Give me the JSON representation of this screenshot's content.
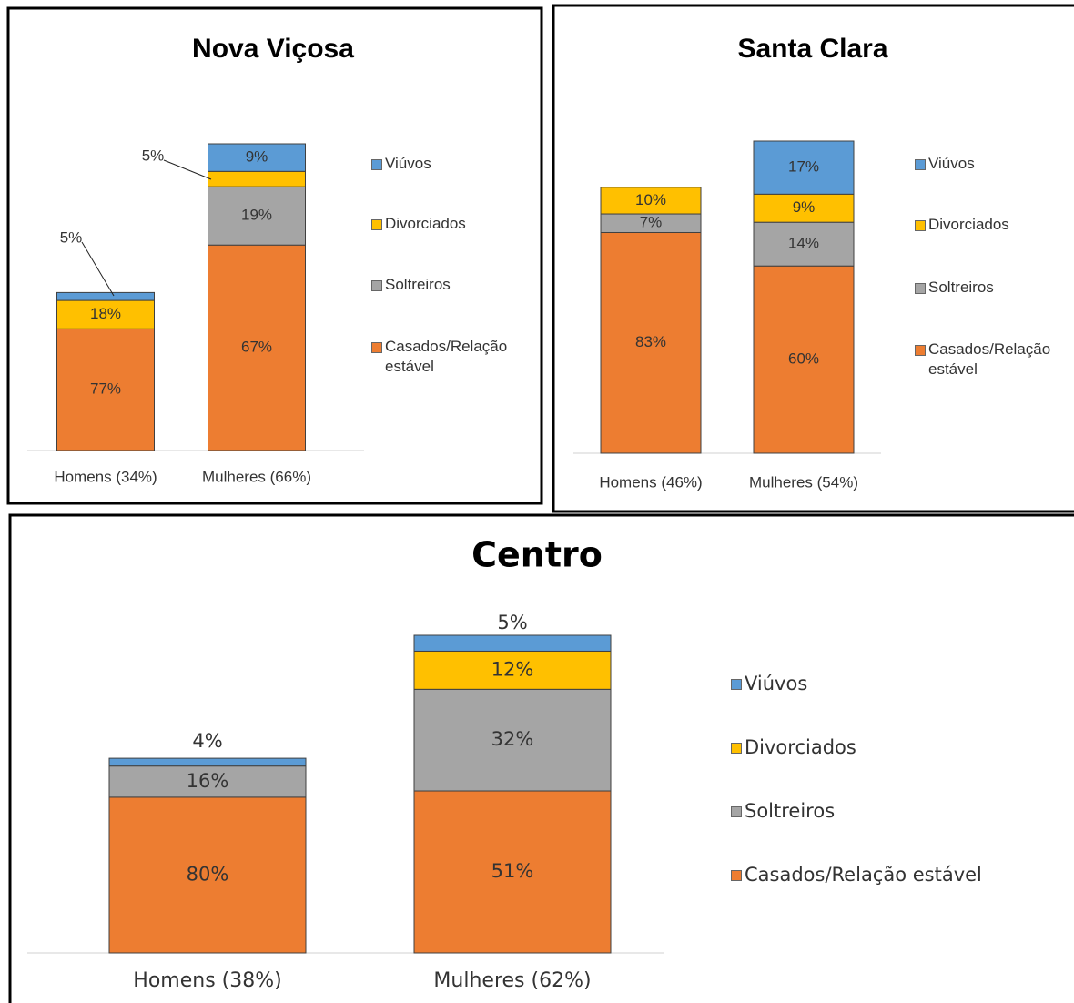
{
  "chart_data": [
    {
      "type": "bar",
      "stacked": true,
      "title": "Nova Viçosa",
      "categories": [
        "Homens (34%)",
        "Mulheres (66%)"
      ],
      "series": [
        {
          "name": "Casados/Relação estável",
          "color": "#ed7d31",
          "values": [
            77,
            67
          ],
          "value_labels": [
            "77%",
            "67%"
          ]
        },
        {
          "name": "Soltreiros",
          "color": "#a5a5a5",
          "values": [
            0,
            19
          ],
          "value_labels": [
            null,
            "19%"
          ]
        },
        {
          "name": "Divorciados",
          "color": "#ffc000",
          "values": [
            18,
            5
          ],
          "value_labels": [
            "18%",
            "5%"
          ]
        },
        {
          "name": "Viúvos",
          "color": "#5b9bd5",
          "values": [
            5,
            9
          ],
          "value_labels": [
            "5%",
            "9%"
          ]
        }
      ]
    },
    {
      "type": "bar",
      "stacked": true,
      "title": "Santa Clara",
      "categories": [
        "Homens (46%)",
        "Mulheres (54%)"
      ],
      "series": [
        {
          "name": "Casados/Relação estável",
          "color": "#ed7d31",
          "values": [
            83,
            60
          ],
          "value_labels": [
            "83%",
            "60%"
          ]
        },
        {
          "name": "Soltreiros",
          "color": "#a5a5a5",
          "values": [
            7,
            14
          ],
          "value_labels": [
            "7%",
            "14%"
          ]
        },
        {
          "name": "Divorciados",
          "color": "#ffc000",
          "values": [
            10,
            9
          ],
          "value_labels": [
            "10%",
            "9%"
          ]
        },
        {
          "name": "Viúvos",
          "color": "#5b9bd5",
          "values": [
            0,
            17
          ],
          "value_labels": [
            null,
            "17%"
          ]
        }
      ]
    },
    {
      "type": "bar",
      "stacked": true,
      "title": "Centro",
      "categories": [
        "Homens (38%)",
        "Mulheres (62%)"
      ],
      "series": [
        {
          "name": "Casados/Relação estável",
          "color": "#ed7d31",
          "values": [
            80,
            51
          ],
          "value_labels": [
            "80%",
            "51%"
          ]
        },
        {
          "name": "Soltreiros",
          "color": "#a5a5a5",
          "values": [
            16,
            32
          ],
          "value_labels": [
            "16%",
            "32%"
          ]
        },
        {
          "name": "Divorciados",
          "color": "#ffc000",
          "values": [
            0,
            12
          ],
          "value_labels": [
            null,
            "12%"
          ]
        },
        {
          "name": "Viúvos",
          "color": "#5b9bd5",
          "values": [
            4,
            5
          ],
          "value_labels": [
            "4%",
            "5%"
          ]
        }
      ]
    }
  ]
}
